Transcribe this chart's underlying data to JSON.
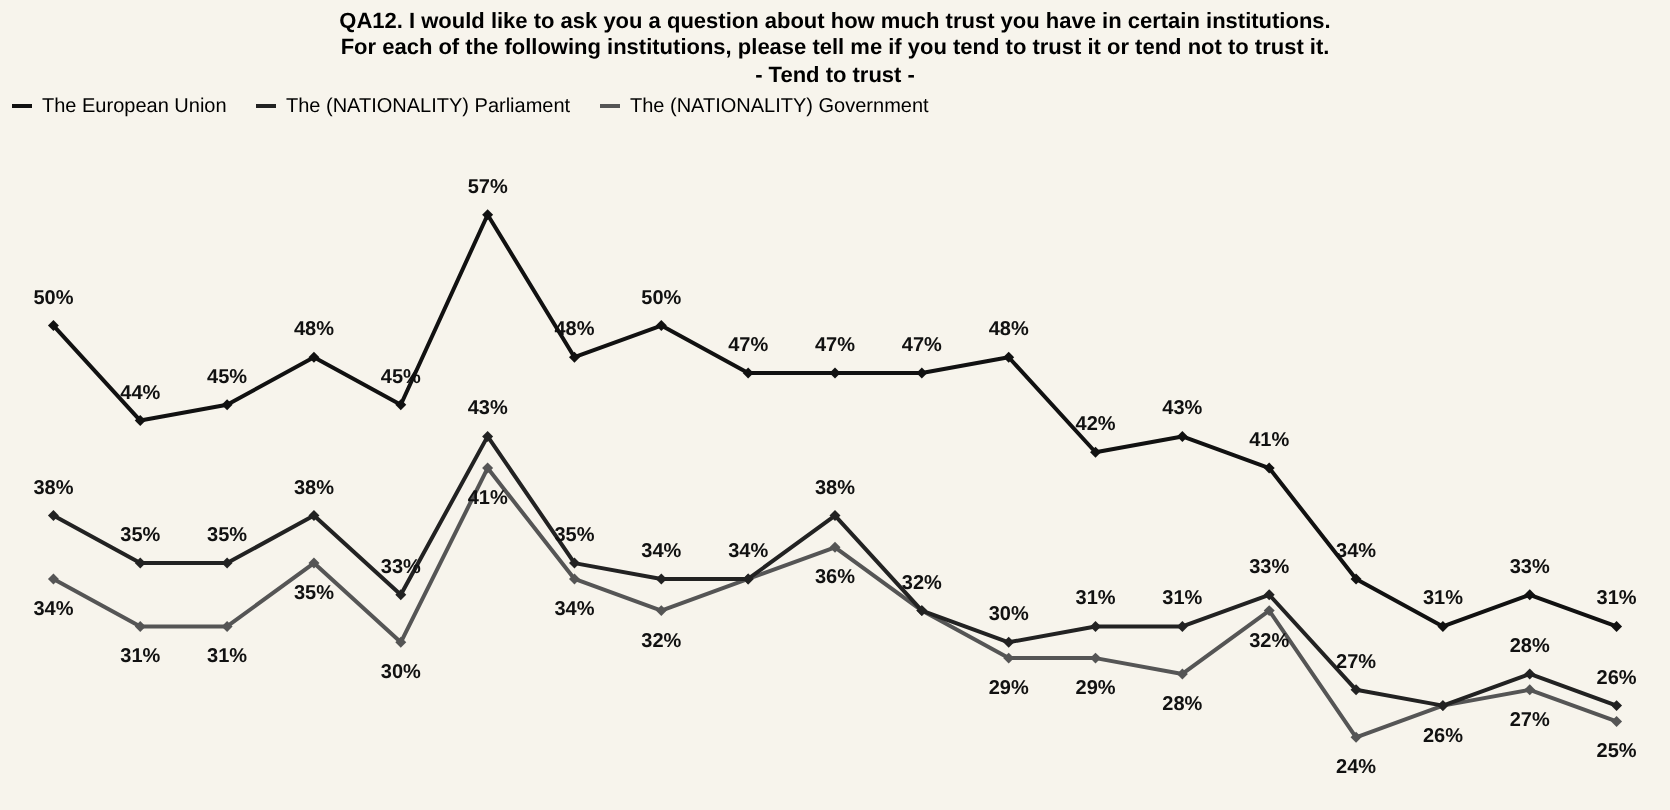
{
  "chart_data": {
    "type": "line",
    "title": "QA12. I would like to ask you a question about how much trust you have in certain institutions.\nFor each of the following institutions, please tell me if you tend to trust it or tend not to trust it.",
    "subtitle": "- Tend to trust -",
    "categories": [
      null,
      null,
      null,
      null,
      null,
      null,
      null,
      null,
      null,
      null,
      null,
      null,
      null,
      null,
      null,
      null,
      null,
      null,
      null
    ],
    "series": [
      {
        "name": "The European Union",
        "color": "#111111",
        "values": [
          50,
          44,
          45,
          48,
          45,
          57,
          48,
          50,
          47,
          47,
          47,
          48,
          42,
          43,
          41,
          34,
          31,
          33,
          31
        ],
        "value_labels": [
          "50%",
          "44%",
          "45%",
          "48%",
          "45%",
          "57%",
          "48%",
          "50%",
          "47%",
          "47%",
          "47%",
          "48%",
          "42%",
          "43%",
          "41%",
          "34%",
          "31%",
          "33%",
          "31%"
        ]
      },
      {
        "name": "The (NATIONALITY) Parliament",
        "color": "#222222",
        "values": [
          38,
          35,
          35,
          38,
          33,
          43,
          35,
          34,
          34,
          38,
          32,
          30,
          31,
          31,
          33,
          27,
          26,
          28,
          26
        ],
        "value_labels": [
          "38%",
          "35%",
          "35%",
          "38%",
          "33%",
          "43%",
          "35%",
          "34%",
          "34%",
          "38%",
          "32%",
          "30%",
          "31%",
          "31%",
          "33%",
          "27%",
          null,
          "28%",
          "26%"
        ]
      },
      {
        "name": "The (NATIONALITY) Government",
        "color": "#555555",
        "values": [
          34,
          31,
          31,
          35,
          30,
          41,
          34,
          32,
          34,
          36,
          32,
          29,
          29,
          28,
          32,
          24,
          26,
          27,
          25
        ],
        "value_labels": [
          "34%",
          "31%",
          "31%",
          "35%",
          "30%",
          "41%",
          "34%",
          "32%",
          null,
          "36%",
          null,
          "29%",
          "29%",
          "28%",
          "32%",
          "24%",
          "26%",
          "27%",
          "25%"
        ]
      }
    ],
    "legend": "top",
    "marker": "diamond",
    "line_style": "solid"
  }
}
